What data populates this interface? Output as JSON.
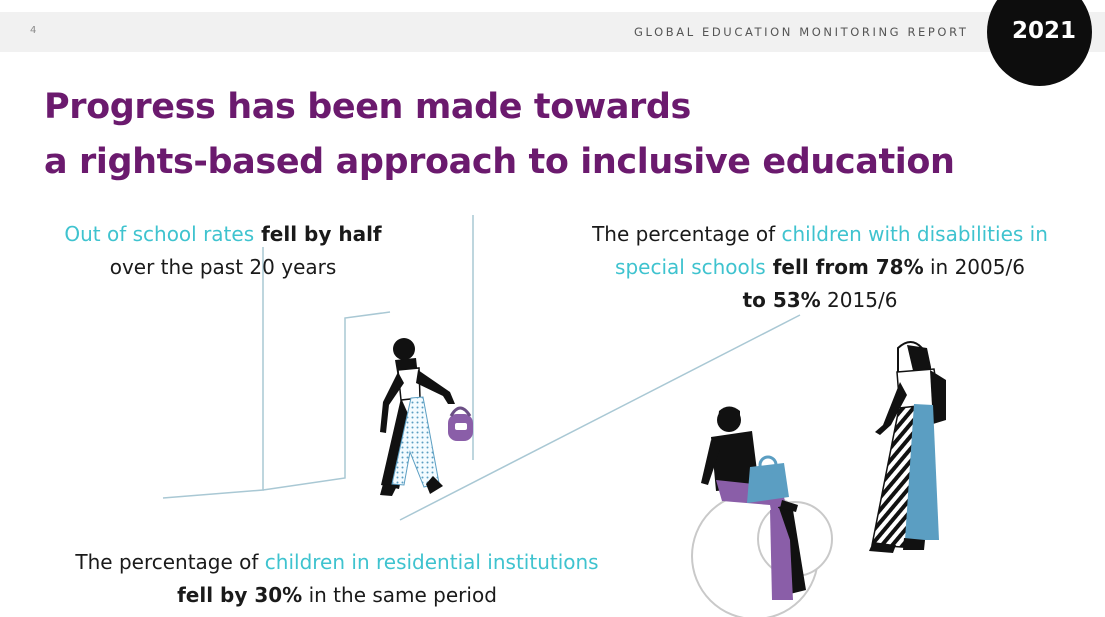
{
  "header": {
    "page_number": "4",
    "report_name": "GLOBAL EDUCATION MONITORING REPORT",
    "year": "2021"
  },
  "title": {
    "line1": "Progress has been made towards",
    "line2": "a rights-based approach to inclusive education"
  },
  "stats": {
    "out_of_school": {
      "hl": "Out of school rates",
      "bold": " fell by half",
      "line2": "over the past 20 years"
    },
    "special_schools": {
      "pre": "The percentage of ",
      "hl1": "children with disabilities in",
      "hl2": "special schools",
      "bold1": " fell from 78%",
      "mid": " in 2005/6",
      "bold2": "to 53%",
      "end": " 2015/6"
    },
    "residential": {
      "pre": "The percentage of ",
      "hl": "children in residential institutions",
      "bold": "fell by 30%",
      "end": " in the same period"
    }
  },
  "colors": {
    "title": "#6b1a6e",
    "highlight": "#3fc3cf",
    "purple_accent": "#8a5ea8",
    "blue_accent": "#5b9ec2"
  }
}
